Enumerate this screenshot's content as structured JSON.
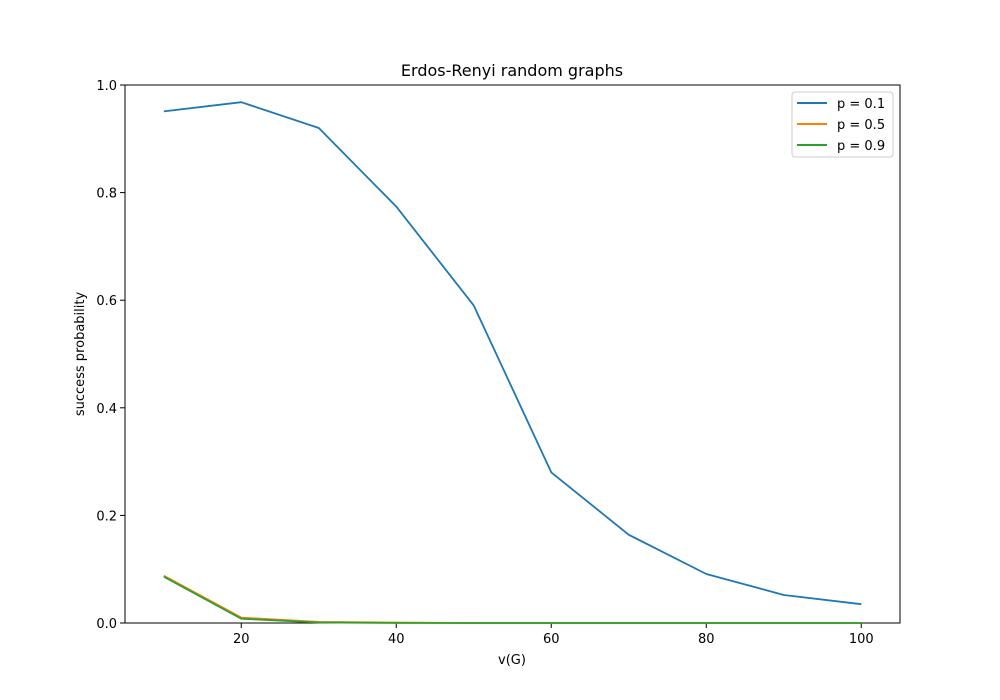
{
  "chart_data": {
    "type": "line",
    "title": "Erdos-Renyi random graphs",
    "xlabel": "v(G)",
    "ylabel": "success probability",
    "x": [
      10,
      20,
      30,
      40,
      50,
      60,
      70,
      80,
      90,
      100
    ],
    "xlim": [
      5,
      105
    ],
    "ylim": [
      0.0,
      1.0
    ],
    "xticks": [
      20,
      40,
      60,
      80,
      100
    ],
    "yticks": [
      0.0,
      0.2,
      0.4,
      0.6,
      0.8,
      1.0
    ],
    "xtick_labels": [
      "20",
      "40",
      "60",
      "80",
      "100"
    ],
    "ytick_labels": [
      "0.0",
      "0.2",
      "0.4",
      "0.6",
      "0.8",
      "1.0"
    ],
    "grid": false,
    "legend_position": "top-right",
    "series": [
      {
        "name": "p = 0.1",
        "color": "#1f77b4",
        "values": [
          0.951,
          0.968,
          0.92,
          0.774,
          0.59,
          0.28,
          0.164,
          0.091,
          0.052,
          0.035
        ]
      },
      {
        "name": "p = 0.5",
        "color": "#ff7f0e",
        "values": [
          0.088,
          0.01,
          0.002,
          0.001,
          0.0,
          0.0,
          0.0,
          0.0,
          0.0,
          0.0
        ]
      },
      {
        "name": "p = 0.9",
        "color": "#2ca02c",
        "values": [
          0.086,
          0.008,
          0.001,
          0.0,
          0.0,
          0.0,
          0.0,
          0.0,
          0.0,
          0.0
        ]
      }
    ]
  }
}
